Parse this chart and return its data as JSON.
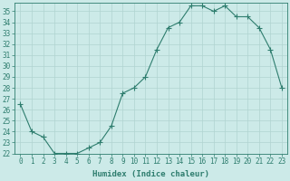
{
  "x": [
    0,
    1,
    2,
    3,
    4,
    5,
    6,
    7,
    8,
    9,
    10,
    11,
    12,
    13,
    14,
    15,
    16,
    17,
    18,
    19,
    20,
    21,
    22,
    23
  ],
  "y": [
    26.5,
    24.0,
    23.5,
    22.0,
    22.0,
    22.0,
    22.5,
    23.0,
    24.5,
    27.5,
    28.0,
    29.0,
    31.5,
    33.5,
    34.0,
    35.5,
    35.5,
    35.0,
    35.5,
    34.5,
    34.5,
    33.5,
    31.5,
    28.0
  ],
  "line_color": "#2e7d6e",
  "marker": "+",
  "marker_size": 4,
  "bg_color": "#cceae8",
  "grid_color": "#b0d4d0",
  "xlabel": "Humidex (Indice chaleur)",
  "ylim": [
    22,
    35.8
  ],
  "xlim": [
    -0.5,
    23.5
  ],
  "yticks": [
    22,
    23,
    24,
    25,
    26,
    27,
    28,
    29,
    30,
    31,
    32,
    33,
    34,
    35
  ],
  "xticks": [
    0,
    1,
    2,
    3,
    4,
    5,
    6,
    7,
    8,
    9,
    10,
    11,
    12,
    13,
    14,
    15,
    16,
    17,
    18,
    19,
    20,
    21,
    22,
    23
  ],
  "label_fontsize": 6.5,
  "tick_fontsize": 5.5
}
